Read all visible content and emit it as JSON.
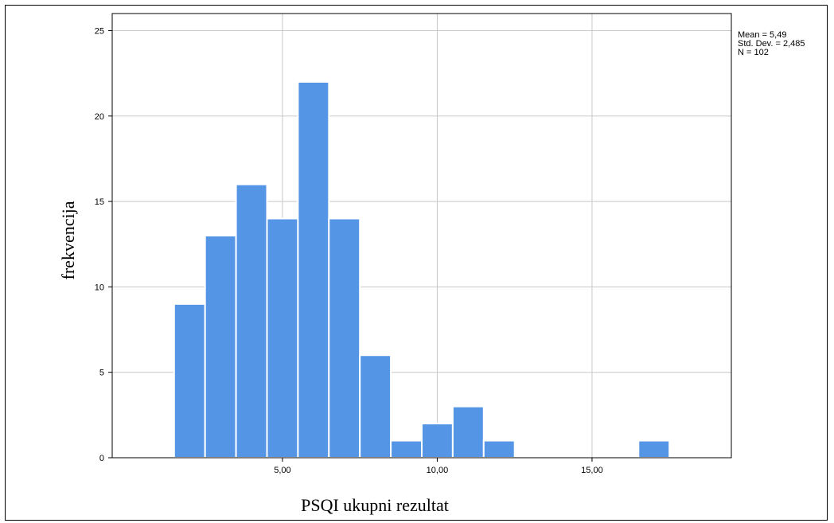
{
  "chart_data": {
    "type": "bar",
    "subtype": "histogram",
    "title": "",
    "xlabel": "PSQI ukupni rezultat",
    "ylabel": "frekvencija",
    "xlim": [
      -0.5,
      19.5
    ],
    "ylim": [
      0,
      26
    ],
    "x_ticks": [
      5,
      10,
      15
    ],
    "x_tick_labels": [
      "5,00",
      "10,00",
      "15,00"
    ],
    "y_ticks": [
      0,
      5,
      10,
      15,
      20,
      25
    ],
    "y_tick_labels": [
      "0",
      "5",
      "10",
      "15",
      "20",
      "25"
    ],
    "grid": true,
    "bar_color": "#5595e6",
    "bins": [
      {
        "x_start": 1.5,
        "x_end": 2.5,
        "value": 9
      },
      {
        "x_start": 2.5,
        "x_end": 3.5,
        "value": 13
      },
      {
        "x_start": 3.5,
        "x_end": 4.5,
        "value": 16
      },
      {
        "x_start": 4.5,
        "x_end": 5.5,
        "value": 14
      },
      {
        "x_start": 5.5,
        "x_end": 6.5,
        "value": 22
      },
      {
        "x_start": 6.5,
        "x_end": 7.5,
        "value": 14
      },
      {
        "x_start": 7.5,
        "x_end": 8.5,
        "value": 6
      },
      {
        "x_start": 8.5,
        "x_end": 9.5,
        "value": 1
      },
      {
        "x_start": 9.5,
        "x_end": 10.5,
        "value": 2
      },
      {
        "x_start": 10.5,
        "x_end": 11.5,
        "value": 3
      },
      {
        "x_start": 11.5,
        "x_end": 12.5,
        "value": 1
      },
      {
        "x_start": 16.5,
        "x_end": 17.5,
        "value": 1
      }
    ],
    "stats": {
      "mean_label": "Mean = 5,49",
      "std_label": "Std. Dev. = 2,485",
      "n_label": "N = 102"
    }
  }
}
